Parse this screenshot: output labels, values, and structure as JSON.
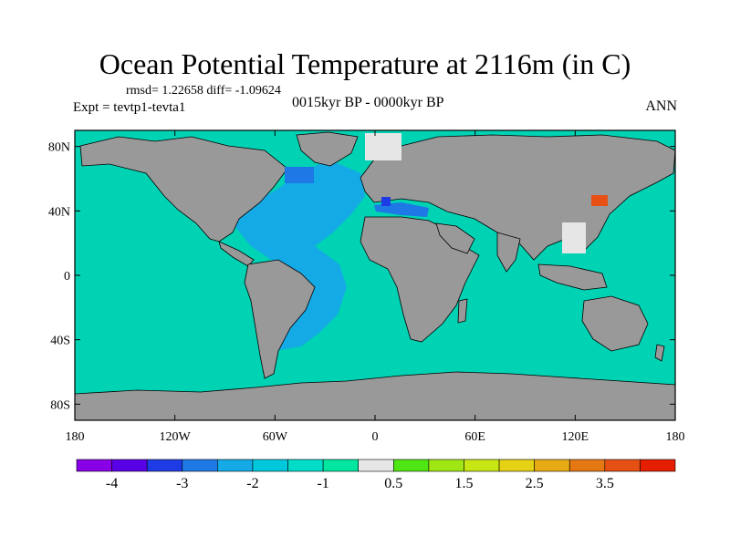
{
  "title": "Ocean Potential Temperature at 2116m (in C)",
  "stats_line": "rmsd= 1.22658 diff= -1.09624",
  "experiment": "Expt = tevtp1-tevta1",
  "period": "0015kyr BP - 0000kyr BP",
  "season": "ANN",
  "map": {
    "land_color": "#999999",
    "ocean_default_color": "#00d2b4",
    "lat_ticks": [
      "80N",
      "40N",
      "0",
      "40S",
      "80S"
    ],
    "lat_values": [
      80,
      40,
      0,
      -40,
      -80
    ],
    "lon_ticks": [
      "180",
      "120W",
      "60W",
      "0",
      "60E",
      "120E",
      "180"
    ],
    "lon_values": [
      -180,
      -120,
      -60,
      0,
      60,
      120,
      180
    ]
  },
  "colorbar": {
    "colors": [
      "#8a00e6",
      "#5a00e6",
      "#1e3ce6",
      "#1e78e6",
      "#14aae6",
      "#00c8dc",
      "#00dcc8",
      "#00e6a0",
      "#e6e6e6",
      "#50e614",
      "#a0e614",
      "#c8e614",
      "#e6d214",
      "#e6aa14",
      "#e67814",
      "#e65014",
      "#e61e00"
    ],
    "labels": [
      "-4",
      "-3",
      "-2",
      "-1",
      "0.5",
      "1.5",
      "2.5",
      "3.5"
    ]
  }
}
